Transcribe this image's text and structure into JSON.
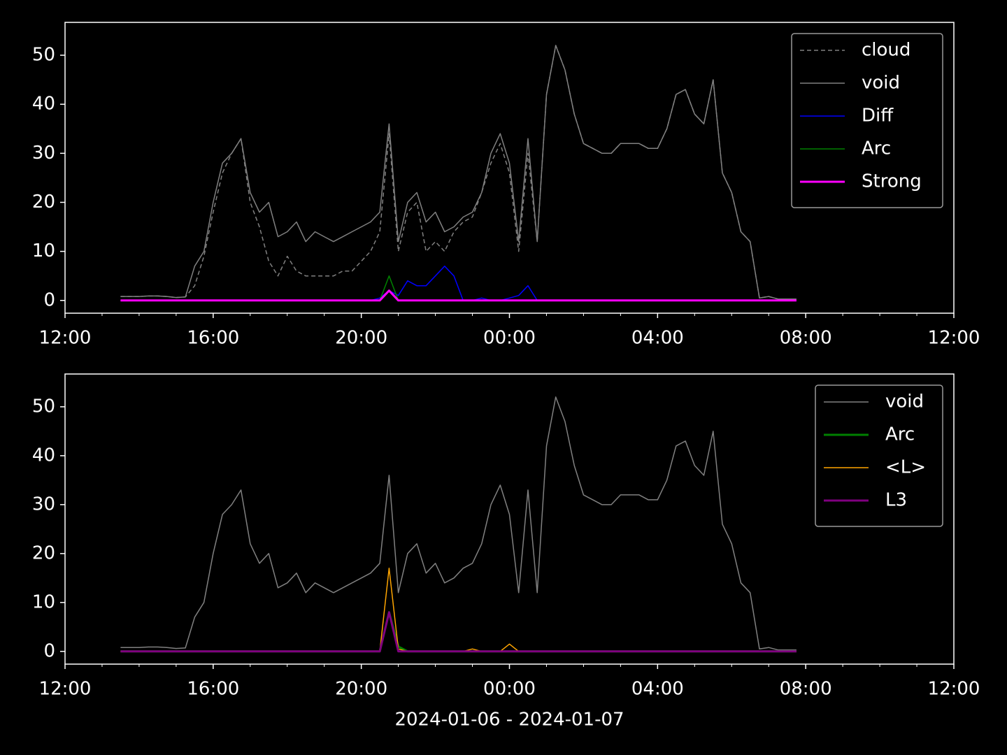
{
  "chart_data": [
    {
      "type": "line",
      "x": [
        13.5,
        13.75,
        14,
        14.25,
        14.5,
        14.75,
        15,
        15.25,
        15.5,
        15.75,
        16,
        16.25,
        16.5,
        16.75,
        17,
        17.25,
        17.5,
        17.75,
        18,
        18.25,
        18.5,
        18.75,
        19,
        19.25,
        19.5,
        19.75,
        20,
        20.25,
        20.5,
        20.75,
        21,
        21.25,
        21.5,
        21.75,
        22,
        22.25,
        22.5,
        22.75,
        23,
        23.25,
        23.5,
        23.75,
        24,
        24.25,
        24.5,
        24.75,
        25,
        25.25,
        25.5,
        25.75,
        26,
        26.25,
        26.5,
        26.75,
        27,
        27.25,
        27.5,
        27.75,
        28,
        28.25,
        28.5,
        28.75,
        29,
        29.25,
        29.5,
        29.75,
        30,
        30.25,
        30.5,
        30.75,
        31,
        31.25,
        31.5,
        31.75
      ],
      "xlim": [
        12,
        36
      ],
      "xticks": [
        {
          "value": 12,
          "label": "12:00"
        },
        {
          "value": 16,
          "label": "16:00"
        },
        {
          "value": 20,
          "label": "20:00"
        },
        {
          "value": 24,
          "label": "00:00"
        },
        {
          "value": 28,
          "label": "04:00"
        },
        {
          "value": 32,
          "label": "08:00"
        },
        {
          "value": 36,
          "label": "12:00"
        }
      ],
      "ylim": [
        -2.6,
        56.7
      ],
      "yticks": [
        0,
        10,
        20,
        30,
        40,
        50
      ],
      "legend": "upper right",
      "series": [
        {
          "name": "cloud",
          "color": "#808080",
          "dash": true,
          "width": 1.5,
          "values": [
            0.8,
            0.8,
            0.8,
            0.9,
            0.9,
            0.8,
            0.6,
            0.7,
            3,
            9,
            18,
            26,
            30,
            33,
            20,
            15,
            8,
            5,
            9,
            6,
            5,
            5,
            5,
            5,
            6,
            6,
            8,
            10,
            14,
            34,
            10,
            18,
            20,
            10,
            12,
            10,
            14,
            16,
            17,
            22,
            28,
            32,
            26,
            10,
            30,
            12,
            42,
            52,
            47,
            38,
            32,
            31,
            30,
            30,
            32,
            32,
            32,
            31,
            31,
            35,
            42,
            43,
            38,
            36,
            45,
            26,
            22,
            14,
            12,
            0.5,
            0.8,
            0.3,
            0.3,
            0.3
          ]
        },
        {
          "name": "void",
          "color": "#808080",
          "width": 1.5,
          "values": [
            0.8,
            0.8,
            0.8,
            0.9,
            0.9,
            0.8,
            0.6,
            0.7,
            7,
            10,
            20,
            28,
            30,
            33,
            22,
            18,
            20,
            13,
            14,
            16,
            12,
            14,
            13,
            12,
            13,
            14,
            15,
            16,
            18,
            36,
            12,
            20,
            22,
            16,
            18,
            14,
            15,
            17,
            18,
            22,
            30,
            34,
            28,
            12,
            33,
            12,
            42,
            52,
            47,
            38,
            32,
            31,
            30,
            30,
            32,
            32,
            32,
            31,
            31,
            35,
            42,
            43,
            38,
            36,
            45,
            26,
            22,
            14,
            12,
            0.5,
            0.8,
            0.3,
            0.3,
            0.3
          ]
        },
        {
          "name": "Diff",
          "color": "#0000ff",
          "width": 1.5,
          "values": [
            0,
            0,
            0,
            0,
            0,
            0,
            0,
            0,
            0,
            0,
            0,
            0,
            0,
            0,
            0,
            0,
            0,
            0,
            0,
            0,
            0,
            0,
            0,
            0,
            0,
            0,
            0,
            0,
            0.5,
            2,
            1,
            4,
            3,
            3,
            5,
            7,
            5,
            0,
            0,
            0.5,
            0,
            0,
            0.5,
            1,
            3,
            0,
            0,
            0,
            0,
            0,
            0,
            0,
            0,
            0,
            0,
            0,
            0,
            0,
            0,
            0,
            0,
            0,
            0,
            0,
            0,
            0,
            0,
            0,
            0,
            0,
            0,
            0,
            0,
            0
          ]
        },
        {
          "name": "Arc",
          "color": "#008000",
          "width": 1.5,
          "values": [
            0,
            0,
            0,
            0,
            0,
            0,
            0,
            0,
            0,
            0,
            0,
            0,
            0,
            0,
            0,
            0,
            0,
            0,
            0,
            0,
            0,
            0,
            0,
            0,
            0,
            0,
            0,
            0,
            0,
            5,
            0,
            0,
            0,
            0,
            0,
            0,
            0,
            0,
            0,
            0,
            0,
            0,
            0,
            0,
            0,
            0,
            0,
            0,
            0,
            0,
            0,
            0,
            0,
            0,
            0,
            0,
            0,
            0,
            0,
            0,
            0,
            0,
            0,
            0,
            0,
            0,
            0,
            0,
            0,
            0,
            0,
            0,
            0,
            0
          ]
        },
        {
          "name": "Strong",
          "color": "#ff00ff",
          "width": 3,
          "values": [
            0,
            0,
            0,
            0,
            0,
            0,
            0,
            0,
            0,
            0,
            0,
            0,
            0,
            0,
            0,
            0,
            0,
            0,
            0,
            0,
            0,
            0,
            0,
            0,
            0,
            0,
            0,
            0,
            0,
            2,
            0,
            0,
            0,
            0,
            0,
            0,
            0,
            0,
            0,
            0,
            0,
            0,
            0,
            0,
            0,
            0,
            0,
            0,
            0,
            0,
            0,
            0,
            0,
            0,
            0,
            0,
            0,
            0,
            0,
            0,
            0,
            0,
            0,
            0,
            0,
            0,
            0,
            0,
            0,
            0,
            0,
            0,
            0,
            0
          ]
        }
      ]
    },
    {
      "type": "line",
      "x": [
        13.5,
        13.75,
        14,
        14.25,
        14.5,
        14.75,
        15,
        15.25,
        15.5,
        15.75,
        16,
        16.25,
        16.5,
        16.75,
        17,
        17.25,
        17.5,
        17.75,
        18,
        18.25,
        18.5,
        18.75,
        19,
        19.25,
        19.5,
        19.75,
        20,
        20.25,
        20.5,
        20.75,
        21,
        21.25,
        21.5,
        21.75,
        22,
        22.25,
        22.5,
        22.75,
        23,
        23.25,
        23.5,
        23.75,
        24,
        24.25,
        24.5,
        24.75,
        25,
        25.25,
        25.5,
        25.75,
        26,
        26.25,
        26.5,
        26.75,
        27,
        27.25,
        27.5,
        27.75,
        28,
        28.25,
        28.5,
        28.75,
        29,
        29.25,
        29.5,
        29.75,
        30,
        30.25,
        30.5,
        30.75,
        31,
        31.25,
        31.5,
        31.75
      ],
      "xlim": [
        12,
        36
      ],
      "xticks": [
        {
          "value": 12,
          "label": "12:00"
        },
        {
          "value": 16,
          "label": "16:00"
        },
        {
          "value": 20,
          "label": "20:00"
        },
        {
          "value": 24,
          "label": "00:00"
        },
        {
          "value": 28,
          "label": "04:00"
        },
        {
          "value": 32,
          "label": "08:00"
        },
        {
          "value": 36,
          "label": "12:00"
        }
      ],
      "ylim": [
        -2.6,
        56.7
      ],
      "yticks": [
        0,
        10,
        20,
        30,
        40,
        50
      ],
      "x_label": "2024-01-06 - 2024-01-07",
      "legend": "upper right",
      "series": [
        {
          "name": "void",
          "color": "#808080",
          "width": 1.5,
          "values": [
            0.8,
            0.8,
            0.8,
            0.9,
            0.9,
            0.8,
            0.6,
            0.7,
            7,
            10,
            20,
            28,
            30,
            33,
            22,
            18,
            20,
            13,
            14,
            16,
            12,
            14,
            13,
            12,
            13,
            14,
            15,
            16,
            18,
            36,
            12,
            20,
            22,
            16,
            18,
            14,
            15,
            17,
            18,
            22,
            30,
            34,
            28,
            12,
            33,
            12,
            42,
            52,
            47,
            38,
            32,
            31,
            30,
            30,
            32,
            32,
            32,
            31,
            31,
            35,
            42,
            43,
            38,
            36,
            45,
            26,
            22,
            14,
            12,
            0.5,
            0.8,
            0.3,
            0.3,
            0.3
          ]
        },
        {
          "name": "Arc",
          "color": "#008000",
          "width": 3,
          "values": [
            0,
            0,
            0,
            0,
            0,
            0,
            0,
            0,
            0,
            0,
            0,
            0,
            0,
            0,
            0,
            0,
            0,
            0,
            0,
            0,
            0,
            0,
            0,
            0,
            0,
            0,
            0,
            0,
            0,
            8,
            1,
            0,
            0,
            0,
            0,
            0,
            0,
            0,
            0,
            0,
            0,
            0,
            0,
            0,
            0,
            0,
            0,
            0,
            0,
            0,
            0,
            0,
            0,
            0,
            0,
            0,
            0,
            0,
            0,
            0,
            0,
            0,
            0,
            0,
            0,
            0,
            0,
            0,
            0,
            0,
            0,
            0,
            0,
            0
          ]
        },
        {
          "name": "<L>",
          "color": "#ffa500",
          "width": 1.5,
          "values": [
            0,
            0,
            0,
            0,
            0,
            0,
            0,
            0,
            0,
            0,
            0,
            0,
            0,
            0,
            0,
            0,
            0,
            0,
            0,
            0,
            0,
            0,
            0,
            0,
            0,
            0,
            0,
            0,
            0,
            17,
            0.5,
            0,
            0,
            0,
            0,
            0,
            0,
            0,
            0.5,
            0,
            0,
            0,
            1.5,
            0,
            0,
            0,
            0,
            0,
            0,
            0,
            0,
            0,
            0,
            0,
            0,
            0,
            0,
            0,
            0,
            0,
            0,
            0,
            0,
            0,
            0,
            0,
            0,
            0,
            0,
            0,
            0,
            0,
            0,
            0
          ]
        },
        {
          "name": "L3",
          "color": "#800080",
          "width": 3,
          "values": [
            0,
            0,
            0,
            0,
            0,
            0,
            0,
            0,
            0,
            0,
            0,
            0,
            0,
            0,
            0,
            0,
            0,
            0,
            0,
            0,
            0,
            0,
            0,
            0,
            0,
            0,
            0,
            0,
            0,
            8,
            0,
            0,
            0,
            0,
            0,
            0,
            0,
            0,
            0,
            0,
            0,
            0,
            0,
            0,
            0,
            0,
            0,
            0,
            0,
            0,
            0,
            0,
            0,
            0,
            0,
            0,
            0,
            0,
            0,
            0,
            0,
            0,
            0,
            0,
            0,
            0,
            0,
            0,
            0,
            0,
            0,
            0,
            0,
            0
          ]
        }
      ]
    }
  ]
}
